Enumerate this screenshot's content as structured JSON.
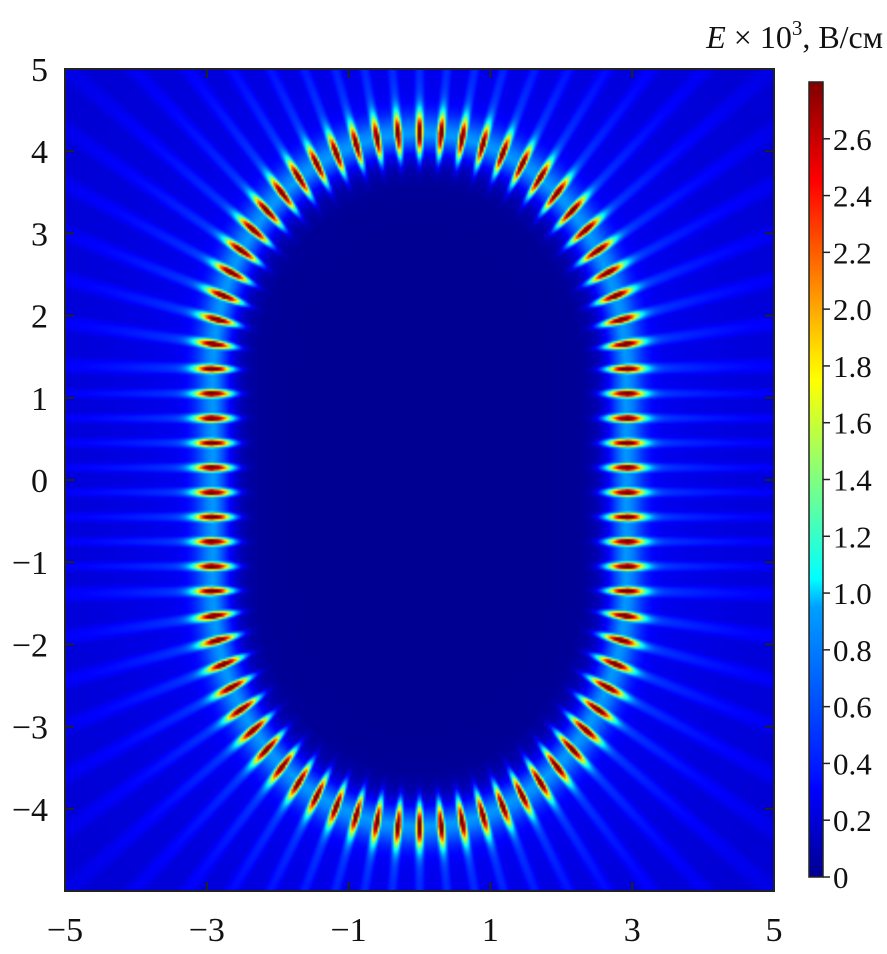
{
  "chart_data": {
    "type": "heatmap",
    "title": "",
    "xlabel": "",
    "ylabel": "",
    "xlim": [
      -5,
      5
    ],
    "ylim": [
      -5,
      5
    ],
    "x_ticks": [
      -5,
      -3,
      -1,
      1,
      3,
      5
    ],
    "x_tick_labels": [
      "−5",
      "−3",
      "−1",
      "1",
      "3",
      "5"
    ],
    "y_ticks": [
      5,
      4,
      3,
      2,
      1,
      0,
      -1,
      -2,
      -3,
      -4
    ],
    "y_tick_labels": [
      "5",
      "4",
      "3",
      "2",
      "1",
      "0",
      "−1",
      "−2",
      "−3",
      "−4"
    ],
    "colorbar": {
      "title_var": "E",
      "title_rest": " × 10",
      "title_exp": "3",
      "title_unit": ", В/см",
      "range": [
        0,
        2.8
      ],
      "ticks": [
        0,
        0.2,
        0.4,
        0.6,
        0.8,
        1.0,
        1.2,
        1.4,
        1.6,
        1.8,
        2.0,
        2.2,
        2.4,
        2.6
      ],
      "tick_labels": [
        "0",
        "0.2",
        "0.4",
        "0.6",
        "0.8",
        "1.0",
        "1.2",
        "1.4",
        "1.6",
        "1.8",
        "2.0",
        "2.2",
        "2.4",
        "2.6"
      ],
      "colormap": "jet"
    },
    "field": {
      "shape": "stadium ring",
      "straight_half_length": 1.3,
      "cap_radius": 2.9,
      "ring_half_width": 0.18,
      "lobe_count": 78,
      "peak_value": 2.75,
      "background_value": 0.3,
      "inner_value": 0.05
    }
  }
}
